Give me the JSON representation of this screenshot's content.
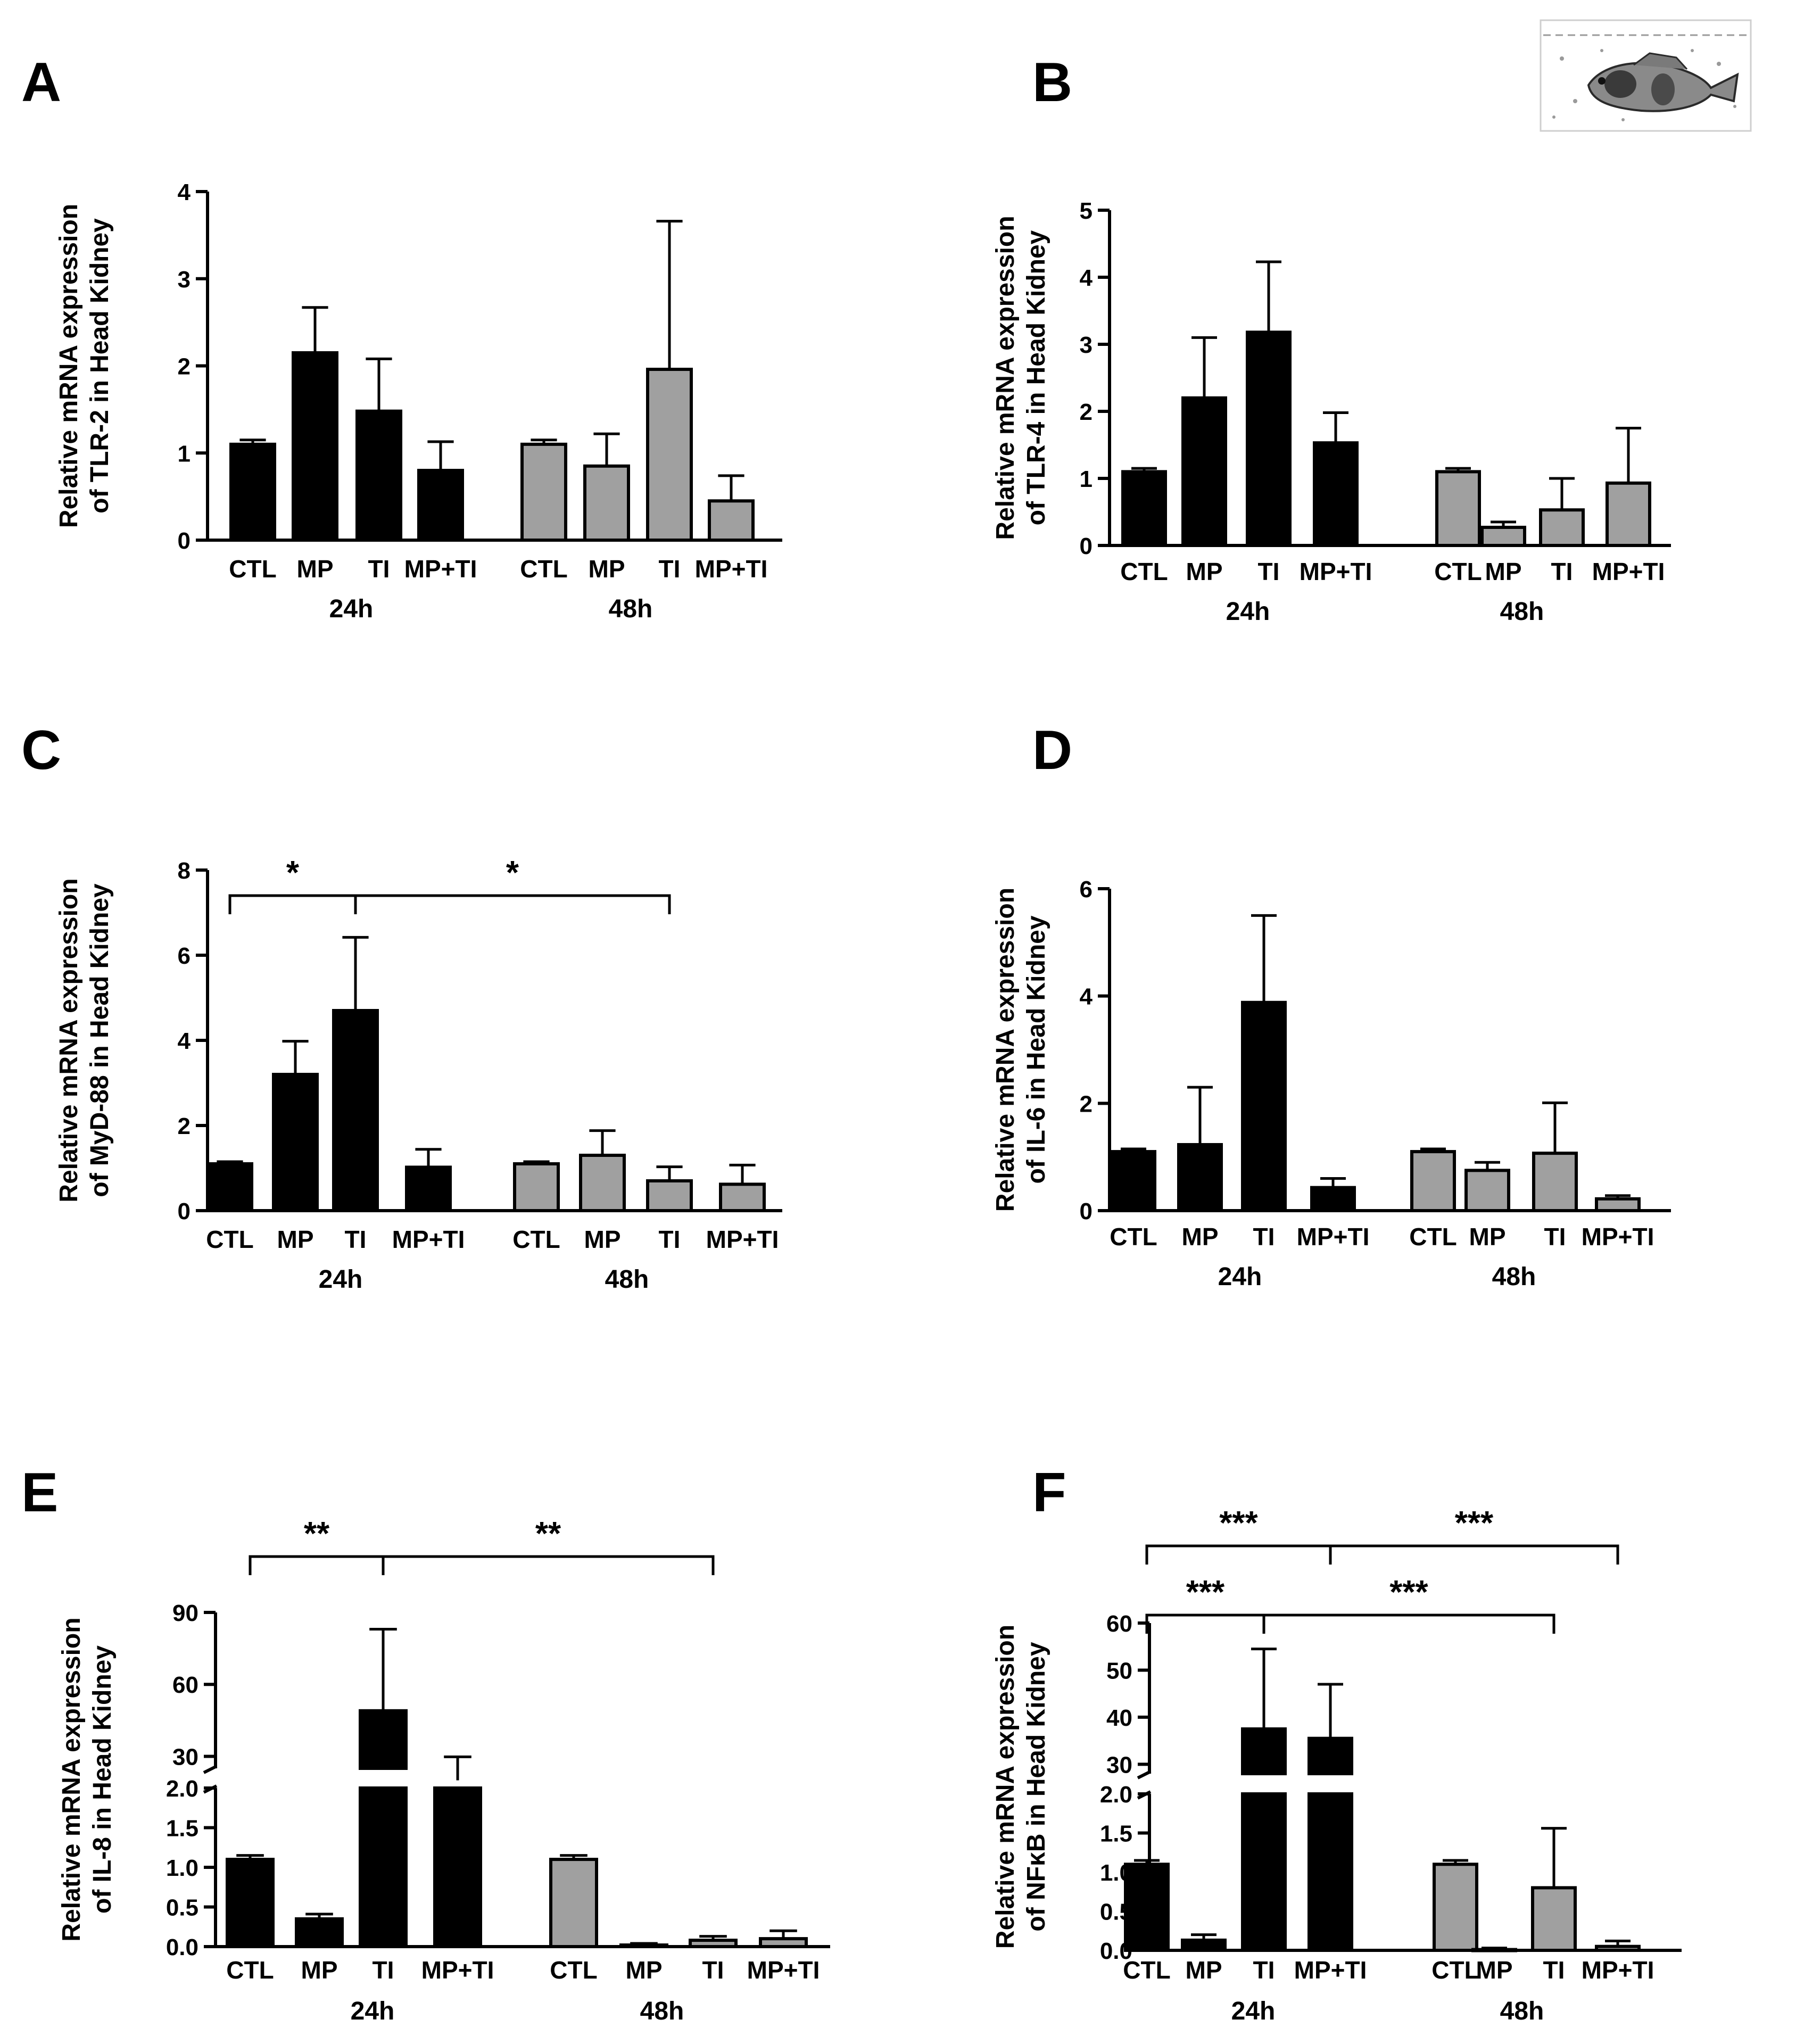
{
  "chart_data": [
    {
      "panel": "A",
      "type": "bar",
      "ylabel": [
        "Relative mRNA expression",
        "of TLR-2 in Head Kidney"
      ],
      "ylim": [
        0,
        4
      ],
      "yticks": [
        0,
        1,
        2,
        3,
        4
      ],
      "groups": [
        "24h",
        "48h"
      ],
      "categories": [
        "CTL",
        "MP",
        "TI",
        "MP+TI",
        "CTL",
        "MP",
        "TI",
        "MP+TI"
      ],
      "values": [
        1.1,
        2.15,
        1.48,
        0.8,
        1.1,
        0.85,
        1.96,
        0.45
      ],
      "errors": [
        0.05,
        0.52,
        0.6,
        0.33,
        0.05,
        0.37,
        1.7,
        0.29
      ],
      "colors": [
        "#000000",
        "#a0a0a0"
      ],
      "significance": []
    },
    {
      "panel": "B",
      "type": "bar",
      "ylabel": [
        "Relative mRNA expression",
        "of TLR-4 in Head Kidney"
      ],
      "ylim": [
        0,
        5
      ],
      "yticks": [
        0,
        1,
        2,
        3,
        4,
        5
      ],
      "groups": [
        "24h",
        "48h"
      ],
      "categories": [
        "CTL",
        "MP",
        "TI",
        "MP+TI",
        "CTL",
        "MP",
        "TI",
        "MP+TI"
      ],
      "values": [
        1.1,
        2.2,
        3.18,
        1.53,
        1.1,
        0.27,
        0.53,
        0.93
      ],
      "errors": [
        0.05,
        0.9,
        1.05,
        0.45,
        0.05,
        0.08,
        0.47,
        0.82
      ],
      "colors": [
        "#000000",
        "#a0a0a0"
      ],
      "significance": []
    },
    {
      "panel": "C",
      "type": "bar",
      "ylabel": [
        "Relative mRNA expression",
        "of MyD-88 in Head Kidney"
      ],
      "ylim": [
        0,
        8
      ],
      "yticks": [
        0,
        2,
        4,
        6,
        8
      ],
      "groups": [
        "24h",
        "48h"
      ],
      "categories": [
        "CTL",
        "MP",
        "TI",
        "MP+TI",
        "CTL",
        "MP",
        "TI",
        "MP+TI"
      ],
      "values": [
        1.1,
        3.2,
        4.7,
        1.02,
        1.1,
        1.3,
        0.7,
        0.62
      ],
      "errors": [
        0.05,
        0.78,
        1.72,
        0.42,
        0.05,
        0.58,
        0.33,
        0.45
      ],
      "colors": [
        "#000000",
        "#a0a0a0"
      ],
      "significance": [
        {
          "from": 0,
          "to": 2,
          "label": "*",
          "level": 7.4
        },
        {
          "from": 2,
          "to": 6,
          "label": "*",
          "level": 7.4
        }
      ]
    },
    {
      "panel": "D",
      "type": "bar",
      "ylabel": [
        "Relative mRNA expression",
        "of IL-6 in Head Kidney"
      ],
      "ylim": [
        0,
        6
      ],
      "yticks": [
        0,
        2,
        4,
        6
      ],
      "groups": [
        "24h",
        "48h"
      ],
      "categories": [
        "CTL",
        "MP",
        "TI",
        "MP+TI",
        "CTL",
        "MP",
        "TI",
        "MP+TI"
      ],
      "values": [
        1.1,
        1.23,
        3.88,
        0.43,
        1.1,
        0.75,
        1.07,
        0.22
      ],
      "errors": [
        0.05,
        1.07,
        1.62,
        0.17,
        0.05,
        0.15,
        0.94,
        0.06
      ],
      "colors": [
        "#000000",
        "#a0a0a0"
      ],
      "significance": []
    },
    {
      "panel": "E",
      "type": "bar",
      "broken_axis": true,
      "ylabel": [
        "Relative mRNA expression",
        "of IL-8 in Head Kidney"
      ],
      "ylim_lower": [
        0,
        2.0
      ],
      "ylim_upper": [
        25,
        90
      ],
      "yticks_lower": [
        0.0,
        0.5,
        1.0,
        1.5,
        2.0
      ],
      "yticks_lower_labels": [
        "0.0",
        "0.5",
        "1.0",
        "1.5",
        "2.0"
      ],
      "yticks_upper": [
        30,
        60,
        90
      ],
      "groups": [
        "24h",
        "48h"
      ],
      "categories": [
        "CTL",
        "MP",
        "TI",
        "MP+TI",
        "CTL",
        "MP",
        "TI",
        "MP+TI"
      ],
      "values": [
        1.1,
        0.35,
        49,
        20,
        1.1,
        0.02,
        0.08,
        0.1
      ],
      "errors": [
        0.05,
        0.06,
        34,
        9.8,
        0.05,
        0.02,
        0.05,
        0.1
      ],
      "colors": [
        "#000000",
        "#a0a0a0"
      ],
      "significance": [
        {
          "from": 0,
          "to": 2,
          "label": "**",
          "row": 1
        },
        {
          "from": 2,
          "to": 6,
          "label": "**",
          "row": 1
        }
      ]
    },
    {
      "panel": "F",
      "type": "bar",
      "broken_axis": true,
      "ylabel": [
        "Relative mRNA expression",
        "of NFκB in Head Kidney"
      ],
      "ylim_lower": [
        0,
        2.0
      ],
      "ylim_upper": [
        28,
        60
      ],
      "yticks_lower": [
        0.0,
        0.5,
        1.0,
        1.5,
        2.0
      ],
      "yticks_lower_labels": [
        "0.0",
        "0.5",
        "1.0",
        "1.5",
        "2.0"
      ],
      "yticks_upper": [
        30,
        40,
        50,
        60
      ],
      "groups": [
        "24h",
        "48h"
      ],
      "categories": [
        "CTL",
        "MP",
        "TI",
        "MP+TI",
        "CTL",
        "MP",
        "TI",
        "MP+TI"
      ],
      "values": [
        1.1,
        0.13,
        37.5,
        35.5,
        1.1,
        0.01,
        0.8,
        0.05
      ],
      "errors": [
        0.05,
        0.07,
        17,
        11.5,
        0.05,
        0.02,
        0.76,
        0.07
      ],
      "colors": [
        "#000000",
        "#a0a0a0"
      ],
      "significance": [
        {
          "from": 0,
          "to": 3,
          "label": "***",
          "row": 2
        },
        {
          "from": 3,
          "to": 7,
          "label": "***",
          "row": 2
        },
        {
          "from": 0,
          "to": 2,
          "label": "***",
          "row": 1
        },
        {
          "from": 2,
          "to": 6,
          "label": "***",
          "row": 1
        }
      ]
    }
  ]
}
